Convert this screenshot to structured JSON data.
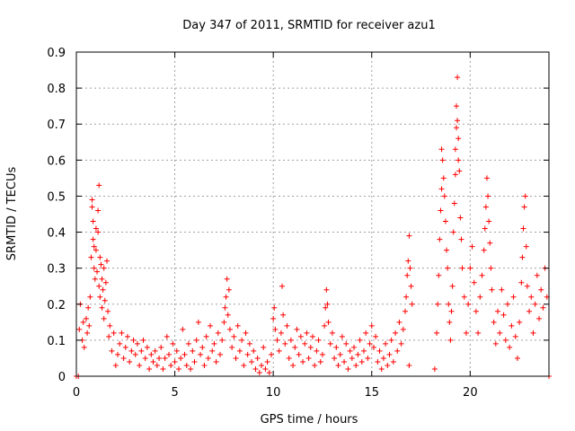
{
  "chart_data": {
    "type": "scatter",
    "title": "Day 347 of 2011, SRMTID for receiver azu1",
    "xlabel": "GPS time / hours",
    "ylabel": "SRMTID / TECUs",
    "xlim": [
      0,
      24
    ],
    "ylim": [
      0,
      0.9
    ],
    "xticks": [
      0,
      5,
      10,
      15,
      20
    ],
    "xtick_labels": [
      "0",
      "5",
      "10",
      "15",
      "20"
    ],
    "yticks": [
      0,
      0.1,
      0.2,
      0.3,
      0.4,
      0.5,
      0.6,
      0.7,
      0.8,
      0.9
    ],
    "ytick_labels": [
      "0",
      "0.1",
      "0.2",
      "0.3",
      "0.4",
      "0.5",
      "0.6",
      "0.7",
      "0.8",
      "0.9"
    ],
    "grid": true,
    "marker": "+",
    "color": "#ff0000",
    "series": [
      {
        "name": "SRMTID",
        "points": [
          [
            0.0,
            0.0
          ],
          [
            0.1,
            0.0
          ],
          [
            0.15,
            0.13
          ],
          [
            0.2,
            0.2
          ],
          [
            0.3,
            0.1
          ],
          [
            0.35,
            0.15
          ],
          [
            0.4,
            0.08
          ],
          [
            0.5,
            0.16
          ],
          [
            0.55,
            0.12
          ],
          [
            0.6,
            0.19
          ],
          [
            0.65,
            0.14
          ],
          [
            0.7,
            0.22
          ],
          [
            0.75,
            0.33
          ],
          [
            0.8,
            0.47
          ],
          [
            0.8,
            0.49
          ],
          [
            0.85,
            0.43
          ],
          [
            0.85,
            0.38
          ],
          [
            0.9,
            0.3
          ],
          [
            0.9,
            0.36
          ],
          [
            0.95,
            0.27
          ],
          [
            1.0,
            0.41
          ],
          [
            1.0,
            0.35
          ],
          [
            1.05,
            0.29
          ],
          [
            1.1,
            0.4
          ],
          [
            1.1,
            0.46
          ],
          [
            1.15,
            0.53
          ],
          [
            1.15,
            0.25
          ],
          [
            1.2,
            0.33
          ],
          [
            1.2,
            0.22
          ],
          [
            1.25,
            0.31
          ],
          [
            1.3,
            0.27
          ],
          [
            1.3,
            0.19
          ],
          [
            1.35,
            0.24
          ],
          [
            1.4,
            0.16
          ],
          [
            1.4,
            0.3
          ],
          [
            1.45,
            0.21
          ],
          [
            1.5,
            0.26
          ],
          [
            1.55,
            0.32
          ],
          [
            1.6,
            0.18
          ],
          [
            1.65,
            0.11
          ],
          [
            1.7,
            0.14
          ],
          [
            1.8,
            0.07
          ],
          [
            1.9,
            0.12
          ],
          [
            2.0,
            0.03
          ],
          [
            2.1,
            0.06
          ],
          [
            2.2,
            0.09
          ],
          [
            2.3,
            0.12
          ],
          [
            2.4,
            0.05
          ],
          [
            2.5,
            0.08
          ],
          [
            2.6,
            0.11
          ],
          [
            2.7,
            0.04
          ],
          [
            2.8,
            0.07
          ],
          [
            2.9,
            0.1
          ],
          [
            3.0,
            0.06
          ],
          [
            3.1,
            0.09
          ],
          [
            3.2,
            0.03
          ],
          [
            3.3,
            0.07
          ],
          [
            3.4,
            0.1
          ],
          [
            3.5,
            0.05
          ],
          [
            3.6,
            0.08
          ],
          [
            3.7,
            0.02
          ],
          [
            3.8,
            0.06
          ],
          [
            3.9,
            0.04
          ],
          [
            4.0,
            0.07
          ],
          [
            4.1,
            0.03
          ],
          [
            4.2,
            0.05
          ],
          [
            4.3,
            0.08
          ],
          [
            4.4,
            0.02
          ],
          [
            4.5,
            0.05
          ],
          [
            4.6,
            0.11
          ],
          [
            4.7,
            0.06
          ],
          [
            4.8,
            0.03
          ],
          [
            4.9,
            0.09
          ],
          [
            5.0,
            0.04
          ],
          [
            5.1,
            0.07
          ],
          [
            5.2,
            0.02
          ],
          [
            5.3,
            0.05
          ],
          [
            5.4,
            0.13
          ],
          [
            5.5,
            0.06
          ],
          [
            5.6,
            0.03
          ],
          [
            5.7,
            0.09
          ],
          [
            5.8,
            0.02
          ],
          [
            5.9,
            0.07
          ],
          [
            6.0,
            0.04
          ],
          [
            6.1,
            0.1
          ],
          [
            6.2,
            0.15
          ],
          [
            6.3,
            0.06
          ],
          [
            6.4,
            0.08
          ],
          [
            6.5,
            0.03
          ],
          [
            6.6,
            0.11
          ],
          [
            6.7,
            0.05
          ],
          [
            6.8,
            0.14
          ],
          [
            6.9,
            0.07
          ],
          [
            7.0,
            0.09
          ],
          [
            7.1,
            0.04
          ],
          [
            7.2,
            0.12
          ],
          [
            7.3,
            0.06
          ],
          [
            7.4,
            0.1
          ],
          [
            7.5,
            0.15
          ],
          [
            7.55,
            0.19
          ],
          [
            7.6,
            0.22
          ],
          [
            7.65,
            0.27
          ],
          [
            7.7,
            0.17
          ],
          [
            7.75,
            0.24
          ],
          [
            7.8,
            0.13
          ],
          [
            7.9,
            0.08
          ],
          [
            8.0,
            0.11
          ],
          [
            8.1,
            0.05
          ],
          [
            8.2,
            0.14
          ],
          [
            8.3,
            0.07
          ],
          [
            8.4,
            0.1
          ],
          [
            8.5,
            0.03
          ],
          [
            8.6,
            0.12
          ],
          [
            8.7,
            0.06
          ],
          [
            8.8,
            0.09
          ],
          [
            8.9,
            0.04
          ],
          [
            9.0,
            0.07
          ],
          [
            9.1,
            0.02
          ],
          [
            9.2,
            0.05
          ],
          [
            9.3,
            0.01
          ],
          [
            9.4,
            0.03
          ],
          [
            9.5,
            0.08
          ],
          [
            9.6,
            0.02
          ],
          [
            9.7,
            0.04
          ],
          [
            9.8,
            0.01
          ],
          [
            9.9,
            0.06
          ],
          [
            10.0,
            0.16
          ],
          [
            10.05,
            0.19
          ],
          [
            10.1,
            0.13
          ],
          [
            10.2,
            0.1
          ],
          [
            10.3,
            0.07
          ],
          [
            10.4,
            0.12
          ],
          [
            10.45,
            0.25
          ],
          [
            10.5,
            0.17
          ],
          [
            10.6,
            0.09
          ],
          [
            10.7,
            0.14
          ],
          [
            10.8,
            0.05
          ],
          [
            10.9,
            0.1
          ],
          [
            11.0,
            0.03
          ],
          [
            11.1,
            0.08
          ],
          [
            11.2,
            0.13
          ],
          [
            11.3,
            0.06
          ],
          [
            11.4,
            0.11
          ],
          [
            11.5,
            0.04
          ],
          [
            11.6,
            0.09
          ],
          [
            11.7,
            0.12
          ],
          [
            11.8,
            0.05
          ],
          [
            11.9,
            0.08
          ],
          [
            12.0,
            0.11
          ],
          [
            12.1,
            0.03
          ],
          [
            12.2,
            0.07
          ],
          [
            12.3,
            0.1
          ],
          [
            12.4,
            0.04
          ],
          [
            12.5,
            0.06
          ],
          [
            12.6,
            0.14
          ],
          [
            12.65,
            0.19
          ],
          [
            12.7,
            0.24
          ],
          [
            12.75,
            0.2
          ],
          [
            12.8,
            0.15
          ],
          [
            12.9,
            0.09
          ],
          [
            13.0,
            0.12
          ],
          [
            13.1,
            0.05
          ],
          [
            13.2,
            0.08
          ],
          [
            13.3,
            0.03
          ],
          [
            13.4,
            0.06
          ],
          [
            13.5,
            0.11
          ],
          [
            13.6,
            0.04
          ],
          [
            13.7,
            0.09
          ],
          [
            13.8,
            0.02
          ],
          [
            13.9,
            0.07
          ],
          [
            14.0,
            0.05
          ],
          [
            14.1,
            0.08
          ],
          [
            14.2,
            0.03
          ],
          [
            14.3,
            0.06
          ],
          [
            14.4,
            0.1
          ],
          [
            14.5,
            0.04
          ],
          [
            14.6,
            0.07
          ],
          [
            14.7,
            0.12
          ],
          [
            14.8,
            0.05
          ],
          [
            14.9,
            0.09
          ],
          [
            15.0,
            0.14
          ],
          [
            15.1,
            0.08
          ],
          [
            15.2,
            0.11
          ],
          [
            15.3,
            0.04
          ],
          [
            15.4,
            0.07
          ],
          [
            15.5,
            0.02
          ],
          [
            15.6,
            0.05
          ],
          [
            15.7,
            0.09
          ],
          [
            15.8,
            0.03
          ],
          [
            15.9,
            0.06
          ],
          [
            16.0,
            0.1
          ],
          [
            16.1,
            0.04
          ],
          [
            16.2,
            0.12
          ],
          [
            16.3,
            0.07
          ],
          [
            16.4,
            0.15
          ],
          [
            16.5,
            0.09
          ],
          [
            16.6,
            0.13
          ],
          [
            16.7,
            0.18
          ],
          [
            16.75,
            0.22
          ],
          [
            16.8,
            0.28
          ],
          [
            16.85,
            0.32
          ],
          [
            16.9,
            0.39
          ],
          [
            16.95,
            0.3
          ],
          [
            17.0,
            0.25
          ],
          [
            17.05,
            0.2
          ],
          [
            16.9,
            0.03
          ],
          [
            18.2,
            0.02
          ],
          [
            18.3,
            0.12
          ],
          [
            18.35,
            0.2
          ],
          [
            18.4,
            0.28
          ],
          [
            18.45,
            0.38
          ],
          [
            18.5,
            0.46
          ],
          [
            18.55,
            0.52
          ],
          [
            18.55,
            0.63
          ],
          [
            18.6,
            0.6
          ],
          [
            18.65,
            0.55
          ],
          [
            18.7,
            0.5
          ],
          [
            18.75,
            0.43
          ],
          [
            18.8,
            0.35
          ],
          [
            18.85,
            0.3
          ],
          [
            18.9,
            0.2
          ],
          [
            18.95,
            0.15
          ],
          [
            19.0,
            0.1
          ],
          [
            19.05,
            0.18
          ],
          [
            19.1,
            0.25
          ],
          [
            19.15,
            0.4
          ],
          [
            19.2,
            0.48
          ],
          [
            19.25,
            0.56
          ],
          [
            19.25,
            0.63
          ],
          [
            19.3,
            0.69
          ],
          [
            19.3,
            0.75
          ],
          [
            19.35,
            0.83
          ],
          [
            19.35,
            0.71
          ],
          [
            19.4,
            0.66
          ],
          [
            19.4,
            0.6
          ],
          [
            19.45,
            0.57
          ],
          [
            19.5,
            0.44
          ],
          [
            19.55,
            0.38
          ],
          [
            19.6,
            0.3
          ],
          [
            19.7,
            0.22
          ],
          [
            19.8,
            0.12
          ],
          [
            19.9,
            0.2
          ],
          [
            20.0,
            0.3
          ],
          [
            20.1,
            0.36
          ],
          [
            20.2,
            0.26
          ],
          [
            20.3,
            0.18
          ],
          [
            20.4,
            0.12
          ],
          [
            20.5,
            0.22
          ],
          [
            20.6,
            0.28
          ],
          [
            20.7,
            0.35
          ],
          [
            20.75,
            0.41
          ],
          [
            20.8,
            0.47
          ],
          [
            20.85,
            0.55
          ],
          [
            20.9,
            0.5
          ],
          [
            20.95,
            0.43
          ],
          [
            21.0,
            0.37
          ],
          [
            21.05,
            0.3
          ],
          [
            21.1,
            0.24
          ],
          [
            21.2,
            0.15
          ],
          [
            21.3,
            0.09
          ],
          [
            21.4,
            0.18
          ],
          [
            21.5,
            0.12
          ],
          [
            21.6,
            0.24
          ],
          [
            21.7,
            0.17
          ],
          [
            21.8,
            0.1
          ],
          [
            21.9,
            0.2
          ],
          [
            22.0,
            0.08
          ],
          [
            22.1,
            0.14
          ],
          [
            22.2,
            0.22
          ],
          [
            22.3,
            0.11
          ],
          [
            22.4,
            0.05
          ],
          [
            22.5,
            0.15
          ],
          [
            22.6,
            0.26
          ],
          [
            22.65,
            0.33
          ],
          [
            22.7,
            0.41
          ],
          [
            22.75,
            0.47
          ],
          [
            22.8,
            0.5
          ],
          [
            22.85,
            0.36
          ],
          [
            22.9,
            0.25
          ],
          [
            23.0,
            0.18
          ],
          [
            23.1,
            0.22
          ],
          [
            23.2,
            0.12
          ],
          [
            23.3,
            0.2
          ],
          [
            23.4,
            0.28
          ],
          [
            23.5,
            0.16
          ],
          [
            23.6,
            0.24
          ],
          [
            23.7,
            0.19
          ],
          [
            23.8,
            0.3
          ],
          [
            23.9,
            0.22
          ],
          [
            24.0,
            0.0
          ]
        ]
      }
    ]
  }
}
